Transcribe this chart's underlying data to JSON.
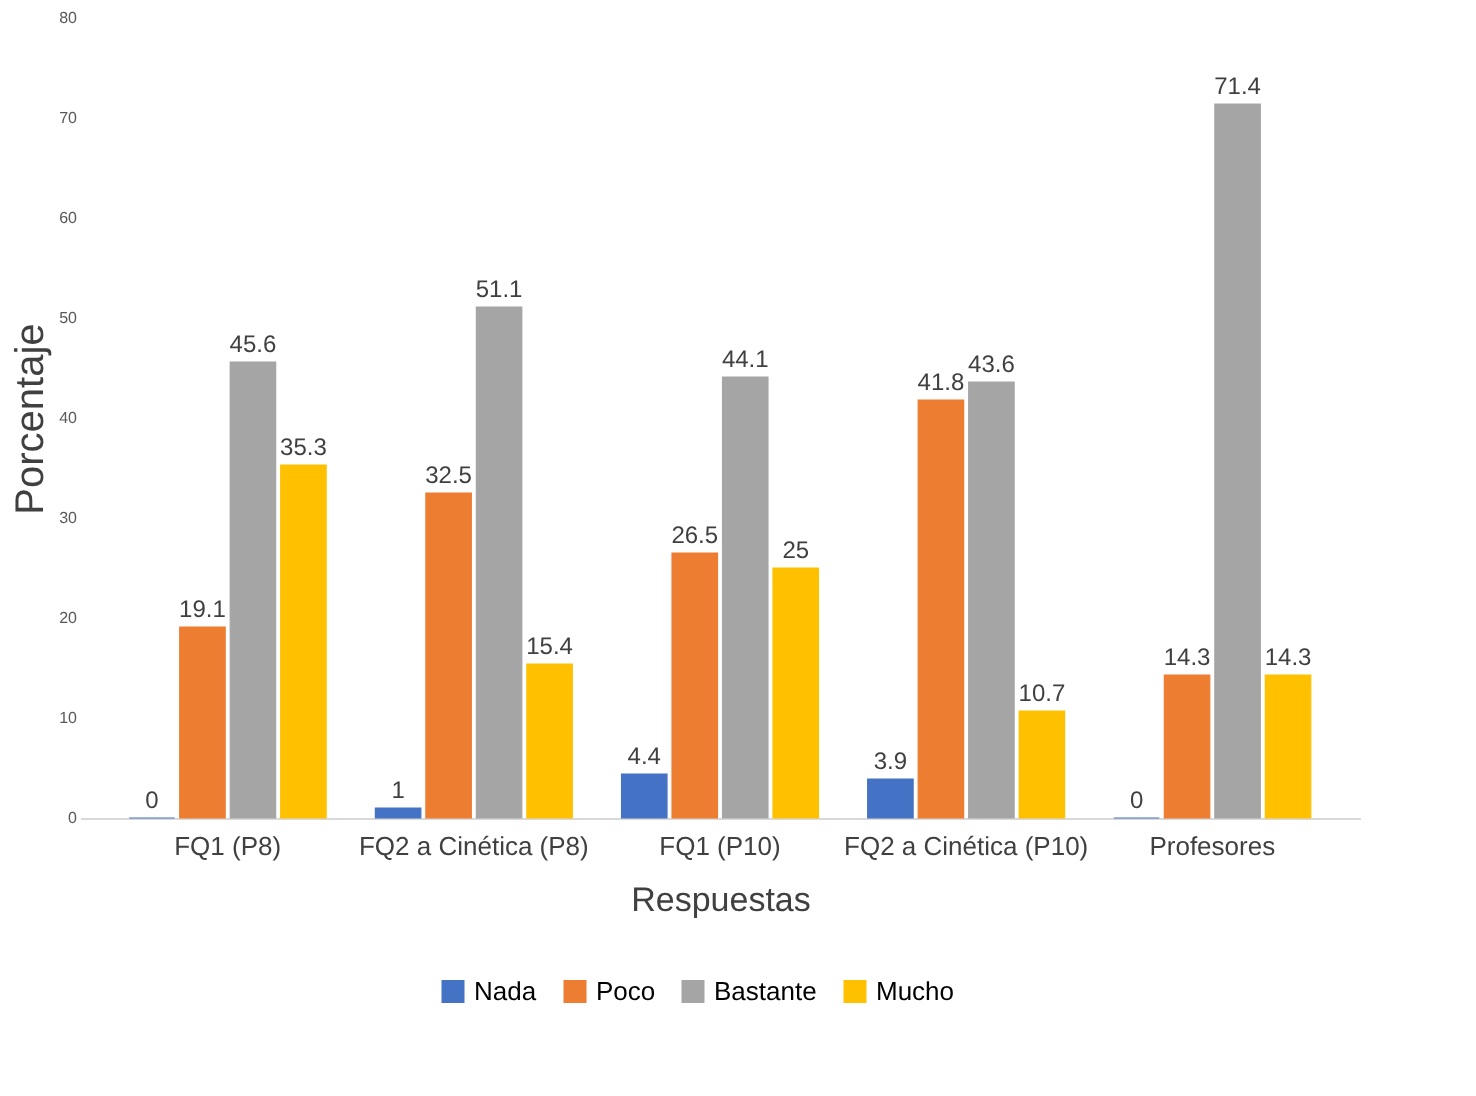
{
  "chart_data": {
    "type": "bar",
    "xlabel": "Respuestas",
    "ylabel": "Porcentaje",
    "categories": [
      "FQ1 (P8)",
      "FQ2 a Cinética (P8)",
      "FQ1 (P10)",
      "FQ2 a Cinética (P10)",
      "Profesores"
    ],
    "series": [
      {
        "name": "Nada",
        "color": "#4472c4",
        "values": [
          0,
          1,
          4.4,
          3.9,
          0
        ]
      },
      {
        "name": "Poco",
        "color": "#ed7d31",
        "values": [
          19.1,
          32.5,
          26.5,
          41.8,
          14.3
        ]
      },
      {
        "name": "Bastante",
        "color": "#a5a5a5",
        "values": [
          45.6,
          51.1,
          44.1,
          43.6,
          71.4
        ]
      },
      {
        "name": "Mucho",
        "color": "#ffc000",
        "values": [
          35.3,
          15.4,
          25,
          10.7,
          14.3
        ]
      }
    ],
    "ylim": [
      0,
      80
    ],
    "yticks": [
      0,
      10,
      20,
      30,
      40,
      50,
      60,
      70,
      80
    ],
    "grid": false,
    "legend": "bottom",
    "data_labels": true
  }
}
